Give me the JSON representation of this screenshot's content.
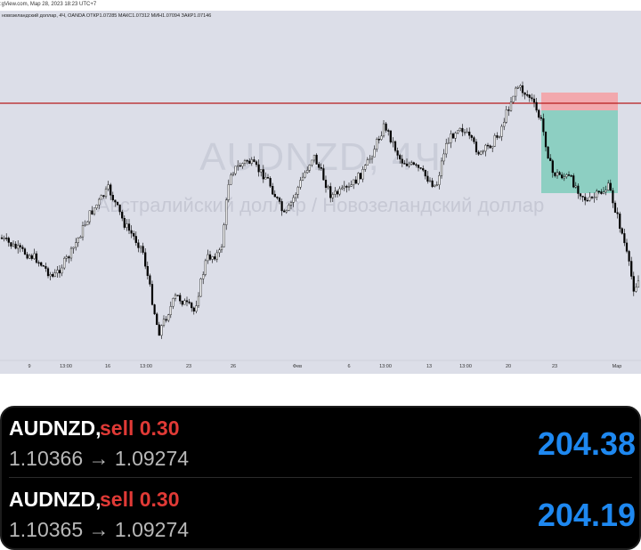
{
  "header": {
    "timestamp_line": ":gView.com, Мар 28, 2023 18:23 UTC+7"
  },
  "chart": {
    "info_line": "новозеландский доллар, 4Ч, OANDA  ОТКР1.07285  МАКС1.07312  МИН1.07094  ЗАКР1.07146",
    "watermark_symbol": "AUDNZD, 4Ч",
    "watermark_name": "Австралийский доллар / Новозеландский доллар",
    "colors": {
      "background": "#dcdee8",
      "up_candle": "#ffffff",
      "down_candle": "#000000",
      "resistance_line": "#b71c1c",
      "stop_zone": "#f2a8ad",
      "target_zone": "#7fcdbb"
    },
    "x_labels": [
      "9",
      "13:00",
      "16",
      "13:00",
      "23",
      "26",
      "Фев",
      "6",
      "13:00",
      "13",
      "13:00",
      "20",
      "23",
      "Мар"
    ]
  },
  "trades": [
    {
      "symbol": "AUDNZD,",
      "side": "sell 0.30",
      "prices": "1.10366 → 1.09274",
      "profit": "204.38"
    },
    {
      "symbol": "AUDNZD,",
      "side": "sell 0.30",
      "prices": "1.10365 → 1.09274",
      "profit": "204.19"
    }
  ]
}
